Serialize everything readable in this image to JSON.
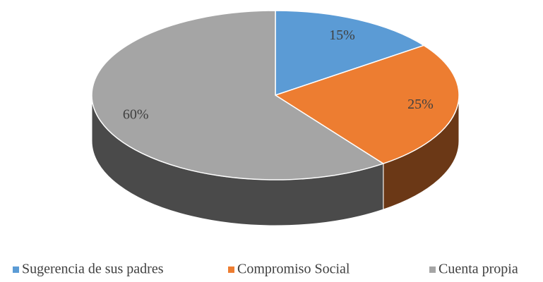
{
  "chart_data": {
    "type": "pie",
    "categories": [
      "Sugerencia de sus padres",
      "Compromiso Social",
      "Cuenta propia"
    ],
    "values": [
      15,
      25,
      60
    ],
    "value_labels": [
      "15%",
      "25%",
      "60%"
    ],
    "colors": [
      "#5b9bd5",
      "#ed7d31",
      "#a5a5a5"
    ],
    "legend": "bottom"
  }
}
